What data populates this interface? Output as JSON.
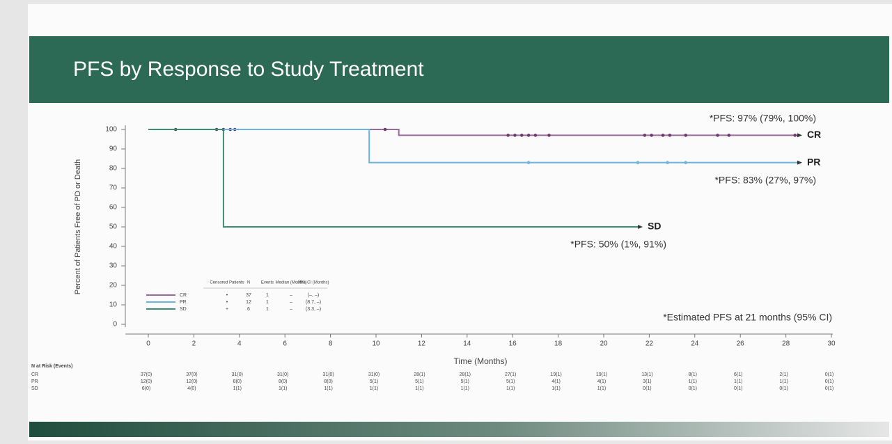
{
  "chart_data": {
    "type": "step",
    "title": "PFS by Response to Study Treatment",
    "x_label": "Time (Months)",
    "y_label": "Percent of Patients Free of PD or Death",
    "xlim": [
      0,
      30
    ],
    "xticks": [
      0,
      2,
      4,
      6,
      8,
      10,
      12,
      14,
      16,
      18,
      20,
      22,
      24,
      26,
      28,
      30
    ],
    "ylim": [
      0,
      100
    ],
    "yticks": [
      0,
      10,
      20,
      30,
      40,
      50,
      60,
      70,
      80,
      90,
      100
    ],
    "series": [
      {
        "name": "CR",
        "color": "#9a6a9c",
        "x": [
          0,
          11,
          11,
          28.5
        ],
        "values": [
          100,
          100,
          97,
          97
        ],
        "censored": {
          "x": [
            1.2,
            3,
            3.3,
            3.6,
            3.8,
            10.4,
            15.8,
            16.1,
            16.4,
            16.7,
            17,
            17.6,
            21.8,
            22.1,
            22.6,
            22.9,
            23.6,
            25,
            25.5,
            28.4
          ],
          "y": [
            100,
            100,
            100,
            100,
            100,
            100,
            97,
            97,
            97,
            97,
            97,
            97,
            97,
            97,
            97,
            97,
            97,
            97,
            97,
            97
          ]
        },
        "annotation": "*PFS: 97% (79%, 100%)",
        "censored_symbol": "•",
        "n": "37",
        "events": "1",
        "median": "–",
        "ci": "(–, –)"
      },
      {
        "name": "PR",
        "color": "#6db3dc",
        "x": [
          0,
          9.7,
          9.7,
          28.5
        ],
        "values": [
          100,
          100,
          83,
          83
        ],
        "censored": {
          "x": [
            16.7,
            21.5,
            22.8,
            23.6
          ],
          "y": [
            83,
            83,
            83,
            83
          ]
        },
        "annotation": "*PFS: 83% (27%, 97%)",
        "censored_symbol": "•",
        "n": "12",
        "events": "1",
        "median": "–",
        "ci": "(8.7, –)"
      },
      {
        "name": "SD",
        "color": "#3f8c74",
        "x": [
          0,
          3.3,
          3.3,
          21.5
        ],
        "values": [
          100,
          100,
          50,
          50
        ],
        "censored": {
          "x": [],
          "y": []
        },
        "annotation": "*PFS: 50% (1%, 91%)",
        "censored_symbol": "+",
        "n": "6",
        "events": "1",
        "median": "–",
        "ci": "(3.3, –)"
      }
    ],
    "footnote": "*Estimated PFS at 21 months (95% CI)",
    "legend_headers": [
      "Censored Patients",
      "N",
      "Events",
      "Median (Months)",
      "95% CI (Months)"
    ],
    "risk_table": {
      "title": "N at Risk (Events)",
      "rows": [
        [
          "37(0)",
          "37(0)",
          "31(0)",
          "31(0)",
          "31(0)",
          "31(0)",
          "28(1)",
          "28(1)",
          "27(1)",
          "19(1)",
          "19(1)",
          "13(1)",
          "8(1)",
          "6(1)",
          "2(1)",
          "0(1)"
        ],
        [
          "12(0)",
          "12(0)",
          "8(0)",
          "8(0)",
          "8(0)",
          "5(1)",
          "5(1)",
          "5(1)",
          "5(1)",
          "4(1)",
          "4(1)",
          "3(1)",
          "1(1)",
          "1(1)",
          "1(1)",
          "0(1)"
        ],
        [
          "6(0)",
          "4(0)",
          "1(1)",
          "1(1)",
          "1(1)",
          "1(1)",
          "1(1)",
          "1(1)",
          "1(1)",
          "1(1)",
          "1(1)",
          "0(1)",
          "0(1)",
          "0(1)",
          "0(1)",
          "0(1)"
        ]
      ]
    }
  }
}
